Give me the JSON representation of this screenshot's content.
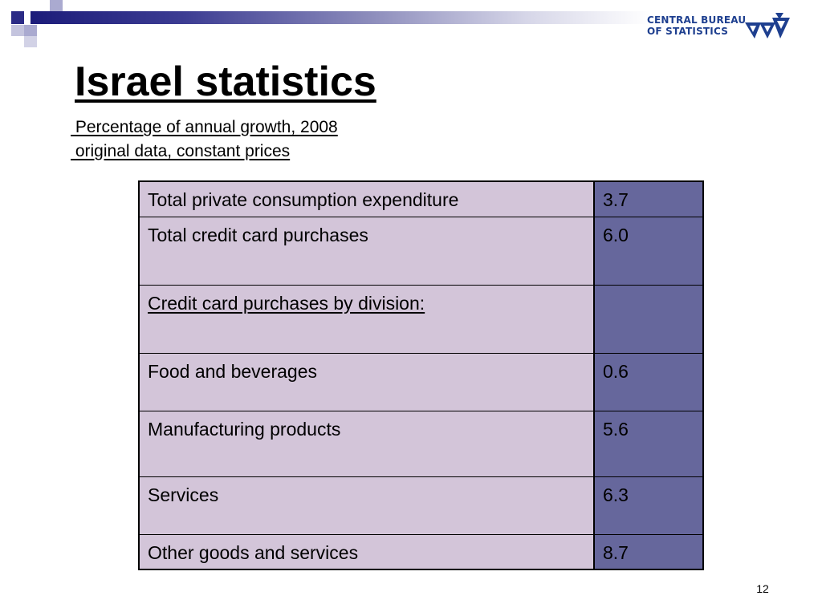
{
  "logo": {
    "line1": "CENTRAL BUREAU",
    "line2": "OF STATISTICS",
    "brand_color": "#1e3f8f"
  },
  "title": "Israel statistics",
  "subtitle": {
    "line1": " Percentage of annual growth, 2008",
    "line2": " original data, constant prices"
  },
  "table": {
    "label_bg": "#d3c5d9",
    "value_bg": "#66679c",
    "rows": [
      {
        "label": "Total private consumption expenditure",
        "value": "3.7"
      },
      {
        "label": "Total credit card purchases",
        "value": "6.0"
      },
      {
        "label": "Credit card purchases by division:",
        "value": ""
      },
      {
        "label": "Food and beverages",
        "value": "0.6"
      },
      {
        "label": "Manufacturing products",
        "value": "5.6"
      },
      {
        "label": "Services",
        "value": "6.3"
      },
      {
        "label": "Other goods and services",
        "value": "8.7"
      }
    ]
  },
  "page_number": "12",
  "decor": {
    "bar_color_dark": "#1c1c7a",
    "square_color_dark": "#2b2b86",
    "square_color_light": "#aaaad0"
  }
}
